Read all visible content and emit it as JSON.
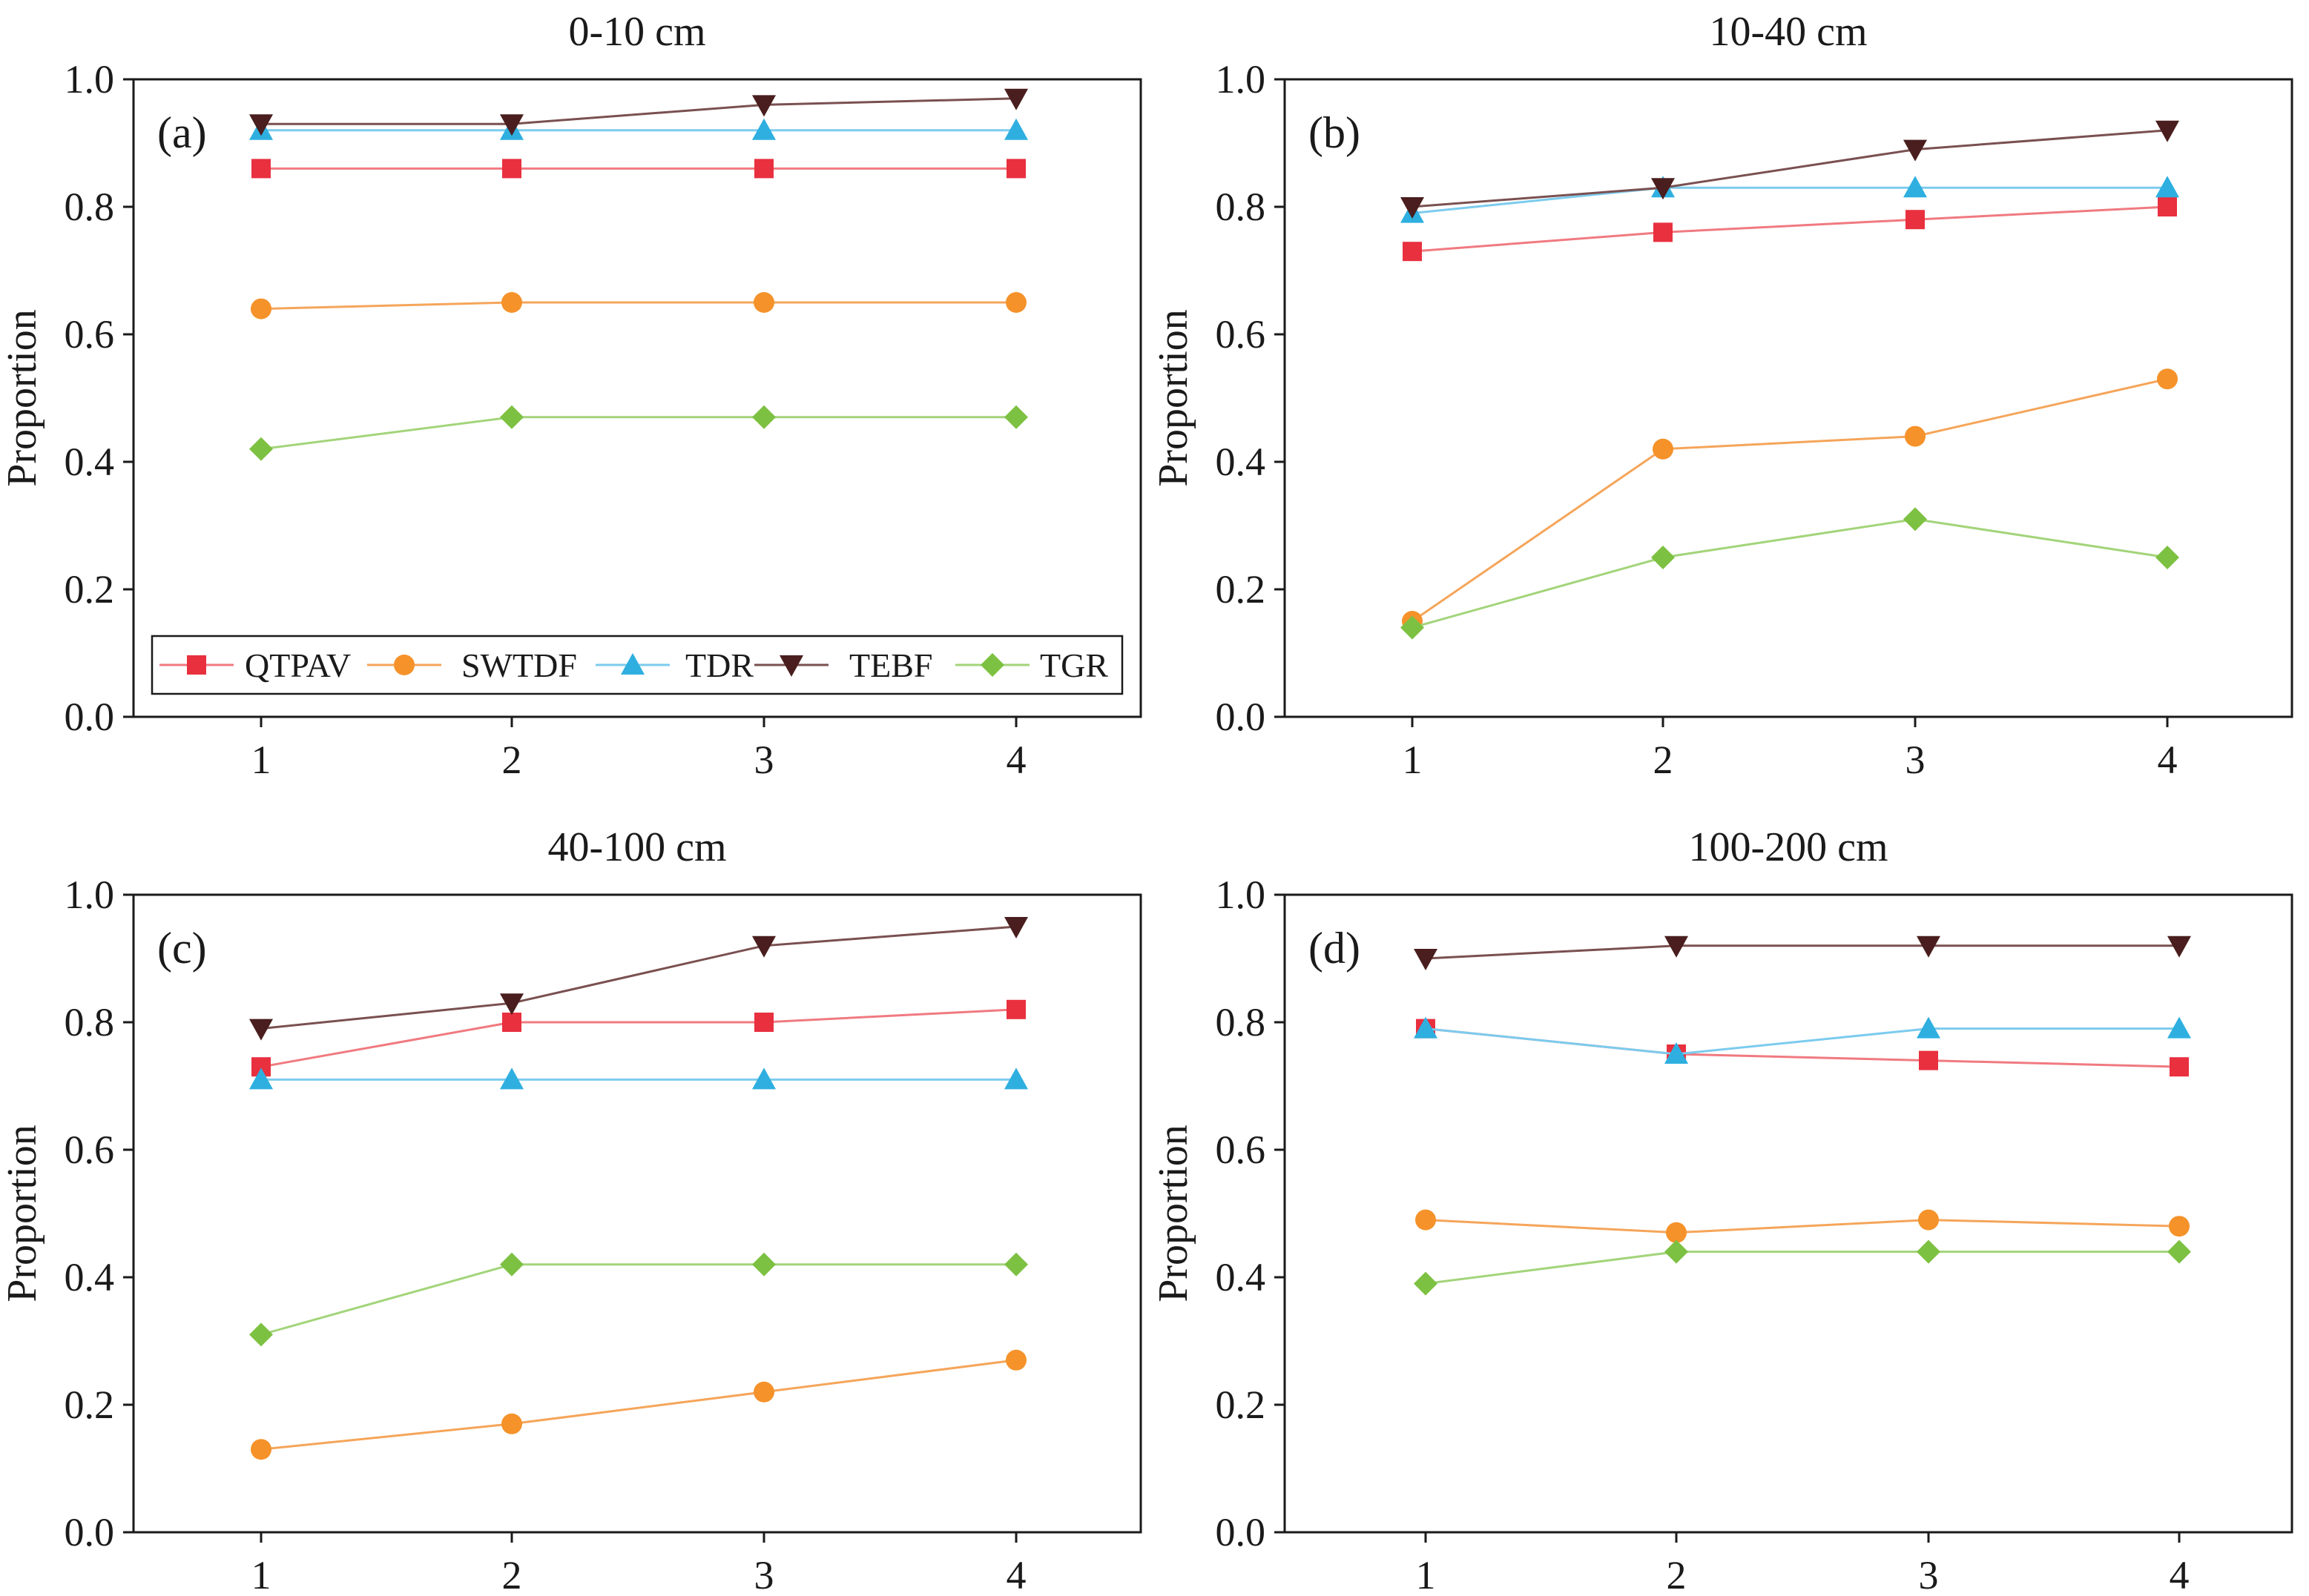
{
  "chart_data": [
    {
      "type": "line",
      "panel_label": "(a)",
      "title": "0-10 cm",
      "xlabel": "",
      "ylabel": "Proportion",
      "x": [
        1,
        2,
        3,
        4
      ],
      "x_tick_labels": [
        "1",
        "2",
        "3",
        "4"
      ],
      "ylim": [
        0.0,
        1.0
      ],
      "y_tick_labels": [
        "0.0",
        "0.2",
        "0.4",
        "0.6",
        "0.8",
        "1.0"
      ],
      "legend": "bottom",
      "series": [
        {
          "name": "QTPAV",
          "values": [
            0.86,
            0.86,
            0.86,
            0.86
          ]
        },
        {
          "name": "SWTDF",
          "values": [
            0.64,
            0.65,
            0.65,
            0.65
          ]
        },
        {
          "name": "TDR",
          "values": [
            0.92,
            0.92,
            0.92,
            0.92
          ]
        },
        {
          "name": "TEBF",
          "values": [
            0.93,
            0.93,
            0.96,
            0.97
          ]
        },
        {
          "name": "TGR",
          "values": [
            0.42,
            0.47,
            0.47,
            0.47
          ]
        }
      ]
    },
    {
      "type": "line",
      "panel_label": "(b)",
      "title": "10-40 cm",
      "xlabel": "",
      "ylabel": "Proportion",
      "x": [
        1,
        2,
        3,
        4
      ],
      "x_tick_labels": [
        "1",
        "2",
        "3",
        "4"
      ],
      "ylim": [
        0.0,
        1.0
      ],
      "y_tick_labels": [
        "0.0",
        "0.2",
        "0.4",
        "0.6",
        "0.8",
        "1.0"
      ],
      "series": [
        {
          "name": "QTPAV",
          "values": [
            0.73,
            0.76,
            0.78,
            0.8
          ]
        },
        {
          "name": "SWTDF",
          "values": [
            0.15,
            0.42,
            0.44,
            0.53
          ]
        },
        {
          "name": "TDR",
          "values": [
            0.79,
            0.83,
            0.83,
            0.83
          ]
        },
        {
          "name": "TEBF",
          "values": [
            0.8,
            0.83,
            0.89,
            0.92
          ]
        },
        {
          "name": "TGR",
          "values": [
            0.14,
            0.25,
            0.31,
            0.25
          ]
        }
      ]
    },
    {
      "type": "line",
      "panel_label": "(c)",
      "title": "40-100 cm",
      "xlabel": "",
      "ylabel": "Proportion",
      "x": [
        1,
        2,
        3,
        4
      ],
      "x_tick_labels": [
        "1",
        "2",
        "3",
        "4"
      ],
      "ylim": [
        0.0,
        1.0
      ],
      "y_tick_labels": [
        "0.0",
        "0.2",
        "0.4",
        "0.6",
        "0.8",
        "1.0"
      ],
      "series": [
        {
          "name": "QTPAV",
          "values": [
            0.73,
            0.8,
            0.8,
            0.82
          ]
        },
        {
          "name": "SWTDF",
          "values": [
            0.13,
            0.17,
            0.22,
            0.27
          ]
        },
        {
          "name": "TDR",
          "values": [
            0.71,
            0.71,
            0.71,
            0.71
          ]
        },
        {
          "name": "TEBF",
          "values": [
            0.79,
            0.83,
            0.92,
            0.95
          ]
        },
        {
          "name": "TGR",
          "values": [
            0.31,
            0.42,
            0.42,
            0.42
          ]
        }
      ]
    },
    {
      "type": "line",
      "panel_label": "(d)",
      "title": "100-200 cm",
      "xlabel": "",
      "ylabel": "Proportion",
      "x": [
        1,
        2,
        3,
        4
      ],
      "x_tick_labels": [
        "1",
        "2",
        "3",
        "4"
      ],
      "ylim": [
        0.0,
        1.0
      ],
      "y_tick_labels": [
        "0.0",
        "0.2",
        "0.4",
        "0.6",
        "0.8",
        "1.0"
      ],
      "series": [
        {
          "name": "QTPAV",
          "values": [
            0.79,
            0.75,
            0.74,
            0.73
          ]
        },
        {
          "name": "SWTDF",
          "values": [
            0.49,
            0.47,
            0.49,
            0.48
          ]
        },
        {
          "name": "TDR",
          "values": [
            0.79,
            0.75,
            0.79,
            0.79
          ]
        },
        {
          "name": "TEBF",
          "values": [
            0.9,
            0.92,
            0.92,
            0.92
          ]
        },
        {
          "name": "TGR",
          "values": [
            0.39,
            0.44,
            0.44,
            0.44
          ]
        }
      ]
    }
  ],
  "series_styles": {
    "QTPAV": {
      "marker": "square",
      "color": "#e8303f",
      "line_color": "#f07a80"
    },
    "SWTDF": {
      "marker": "circle",
      "color": "#f5922a",
      "line_color": "#f5a55a"
    },
    "TDR": {
      "marker": "triangle-up",
      "color": "#2eafe0",
      "line_color": "#7ccbee"
    },
    "TEBF": {
      "marker": "triangle-down",
      "color": "#4a1e1e",
      "line_color": "#7a5050"
    },
    "TGR": {
      "marker": "diamond",
      "color": "#7dc142",
      "line_color": "#a3d47a"
    }
  }
}
